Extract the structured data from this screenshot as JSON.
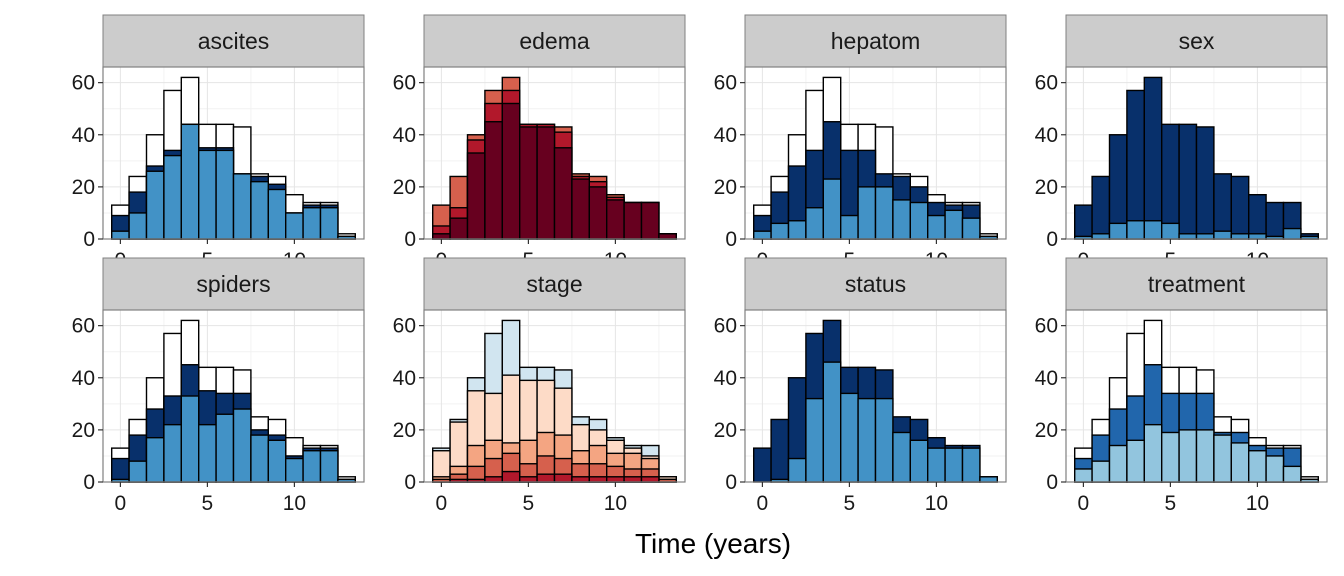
{
  "chart_data": {
    "type": "bar",
    "xlabel": "Time (years)",
    "ylabel": "",
    "xlim": [
      -1,
      14
    ],
    "ylim": [
      0,
      66
    ],
    "x_ticks": [
      0,
      5,
      10
    ],
    "y_ticks": [
      0,
      20,
      40,
      60
    ],
    "bin_width": 1,
    "bins": [
      0,
      1,
      2,
      3,
      4,
      5,
      6,
      7,
      8,
      9,
      10,
      11,
      12,
      13
    ],
    "grid": true,
    "legend": "none",
    "panels": [
      {
        "label": "ascites",
        "layers": [
          {
            "fill": "#ffffff",
            "totals": [
              13,
              24,
              40,
              57,
              62,
              44,
              44,
              43,
              25,
              24,
              17,
              14,
              14,
              2
            ]
          },
          {
            "fill": "#08306b",
            "totals": [
              9,
              18,
              28,
              34,
              44,
              35,
              35,
              25,
              24,
              21,
              10,
              13,
              13,
              1
            ]
          },
          {
            "fill": "#4292c6",
            "totals": [
              3,
              10,
              26,
              32,
              44,
              34,
              34,
              25,
              22,
              19,
              10,
              12,
              12,
              1
            ]
          }
        ]
      },
      {
        "label": "edema",
        "layers": [
          {
            "fill": "#d6604d",
            "totals": [
              13,
              24,
              40,
              57,
              62,
              44,
              44,
              43,
              25,
              24,
              17,
              14,
              14,
              2
            ]
          },
          {
            "fill": "#b2182b",
            "totals": [
              5,
              12,
              38,
              52,
              57,
              44,
              44,
              41,
              24,
              22,
              16,
              14,
              14,
              2
            ]
          },
          {
            "fill": "#67001f",
            "totals": [
              2,
              8,
              33,
              45,
              52,
              43,
              43,
              35,
              23,
              20,
              15,
              14,
              14,
              2
            ]
          }
        ]
      },
      {
        "label": "hepatom",
        "layers": [
          {
            "fill": "#ffffff",
            "totals": [
              13,
              24,
              40,
              57,
              62,
              44,
              44,
              43,
              25,
              24,
              17,
              14,
              14,
              2
            ]
          },
          {
            "fill": "#08306b",
            "totals": [
              9,
              18,
              28,
              34,
              45,
              34,
              34,
              25,
              24,
              20,
              14,
              13,
              13,
              1
            ]
          },
          {
            "fill": "#4292c6",
            "totals": [
              3,
              6,
              7,
              12,
              23,
              9,
              20,
              20,
              15,
              14,
              9,
              11,
              8,
              1
            ]
          }
        ]
      },
      {
        "label": "sex",
        "layers": [
          {
            "fill": "#08306b",
            "totals": [
              13,
              24,
              40,
              57,
              62,
              44,
              44,
              43,
              25,
              24,
              17,
              14,
              14,
              2
            ]
          },
          {
            "fill": "#4292c6",
            "totals": [
              1,
              2,
              6,
              7,
              7,
              6,
              2,
              2,
              3,
              2,
              2,
              1,
              4,
              1
            ]
          }
        ]
      },
      {
        "label": "spiders",
        "layers": [
          {
            "fill": "#ffffff",
            "totals": [
              13,
              24,
              40,
              57,
              62,
              44,
              44,
              43,
              25,
              24,
              17,
              14,
              14,
              2
            ]
          },
          {
            "fill": "#08306b",
            "totals": [
              9,
              18,
              28,
              33,
              45,
              35,
              34,
              34,
              20,
              18,
              10,
              13,
              13,
              1
            ]
          },
          {
            "fill": "#4292c6",
            "totals": [
              1,
              8,
              17,
              22,
              33,
              22,
              26,
              28,
              18,
              16,
              9,
              12,
              12,
              1
            ]
          }
        ]
      },
      {
        "label": "stage",
        "layers": [
          {
            "fill": "#d1e5f0",
            "totals": [
              13,
              24,
              40,
              57,
              62,
              44,
              44,
              43,
              25,
              24,
              17,
              14,
              14,
              2
            ]
          },
          {
            "fill": "#fddbc7",
            "totals": [
              12,
              23,
              35,
              34,
              41,
              39,
              39,
              36,
              22,
              20,
              16,
              13,
              10,
              2
            ]
          },
          {
            "fill": "#f4a582",
            "totals": [
              2,
              6,
              14,
              16,
              15,
              16,
              19,
              18,
              12,
              14,
              11,
              11,
              9,
              1
            ]
          },
          {
            "fill": "#d6604d",
            "totals": [
              1,
              3,
              6,
              9,
              11,
              7,
              10,
              9,
              7,
              7,
              6,
              5,
              5,
              1
            ]
          },
          {
            "fill": "#b2182b",
            "totals": [
              0,
              1,
              1,
              2,
              4,
              2,
              3,
              3,
              2,
              2,
              2,
              2,
              2,
              0
            ]
          }
        ]
      },
      {
        "label": "status",
        "layers": [
          {
            "fill": "#08306b",
            "totals": [
              13,
              24,
              40,
              57,
              62,
              44,
              44,
              43,
              25,
              24,
              17,
              14,
              14,
              2
            ]
          },
          {
            "fill": "#4292c6",
            "totals": [
              0,
              1,
              9,
              32,
              46,
              34,
              32,
              32,
              19,
              16,
              13,
              13,
              13,
              2
            ]
          }
        ]
      },
      {
        "label": "treatment",
        "layers": [
          {
            "fill": "#ffffff",
            "totals": [
              13,
              24,
              40,
              57,
              62,
              44,
              44,
              43,
              25,
              24,
              17,
              14,
              14,
              2
            ]
          },
          {
            "fill": "#2166ac",
            "totals": [
              9,
              18,
              28,
              33,
              45,
              34,
              34,
              34,
              19,
              19,
              14,
              13,
              13,
              1
            ]
          },
          {
            "fill": "#92c5de",
            "totals": [
              5,
              8,
              14,
              16,
              22,
              19,
              20,
              20,
              18,
              15,
              12,
              10,
              6,
              1
            ]
          }
        ]
      }
    ]
  }
}
